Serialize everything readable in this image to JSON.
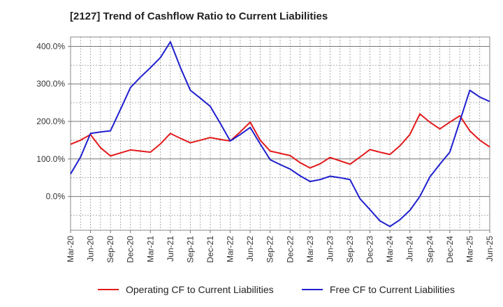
{
  "chart_data": {
    "type": "line",
    "title": "[2127]  Trend of Cashflow Ratio to Current Liabilities",
    "xlabel": "",
    "ylabel": "",
    "x_labels": [
      "Mar-20",
      "Jun-20",
      "Sep-20",
      "Dec-20",
      "Mar-21",
      "Jun-21",
      "Sep-21",
      "Dec-21",
      "Mar-22",
      "Jun-22",
      "Sep-22",
      "Dec-22",
      "Mar-23",
      "Jun-23",
      "Sep-23",
      "Dec-23",
      "Mar-24",
      "Jun-24",
      "Sep-24",
      "Dec-24",
      "Mar-25",
      "Jun-25"
    ],
    "y_ticks": [
      "0.0%",
      "100.0%",
      "200.0%",
      "300.0%",
      "400.0%"
    ],
    "y_tick_values": [
      0,
      100,
      200,
      300,
      400
    ],
    "ylim": [
      -90,
      425
    ],
    "grid": true,
    "legend_position": "bottom",
    "series": [
      {
        "name": "Operating CF to Current Liabilities",
        "color": "#e31a1c",
        "values": [
          139,
          150,
          165,
          130,
          108,
          116,
          124,
          121,
          118,
          140,
          168,
          155,
          143,
          150,
          157,
          152,
          148,
          172,
          198,
          150,
          121,
          115,
          109,
          90,
          76,
          87,
          104,
          95,
          86,
          105,
          125,
          118,
          112,
          135,
          165,
          220,
          198,
          180,
          198,
          215,
          175,
          150,
          132
        ]
      },
      {
        "name": "Free CF to Current Liabilities",
        "color": "#1f1fcf",
        "values": [
          60,
          105,
          168,
          172,
          175,
          232,
          290,
          318,
          343,
          370,
          412,
          344,
          283,
          262,
          240,
          195,
          148,
          165,
          184,
          140,
          98,
          85,
          73,
          55,
          40,
          45,
          54,
          50,
          45,
          -6,
          -35,
          -65,
          -80,
          -62,
          -37,
          0,
          52,
          86,
          118,
          200,
          283,
          265,
          253
        ]
      }
    ]
  }
}
